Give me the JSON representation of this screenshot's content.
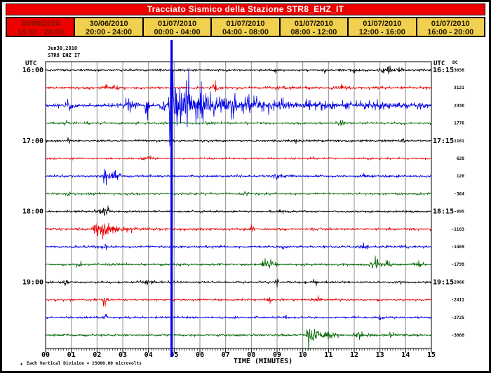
{
  "app": {
    "title": "Tracciato Sismico della Stazione STR8_EHZ_IT"
  },
  "tabs": [
    {
      "date": "30/06/2010",
      "range": "16:00 - 20:00",
      "active": true
    },
    {
      "date": "30/06/2010",
      "range": "20:00 - 24:00",
      "active": false
    },
    {
      "date": "01/07/2010",
      "range": "00:00 - 04:00",
      "active": false
    },
    {
      "date": "01/07/2010",
      "range": "04:00 - 08:00",
      "active": false
    },
    {
      "date": "01/07/2010",
      "range": "08:00 - 12:00",
      "active": false
    },
    {
      "date": "01/07/2010",
      "range": "12:00 - 16:00",
      "active": false
    },
    {
      "date": "01/07/2010",
      "range": "16:00 - 20:00",
      "active": false
    }
  ],
  "colors": {
    "header_bg": "#ee0000",
    "header_text": "#ffffff",
    "tab_bg": "#f0d04e",
    "tab_active_bg": "#ee0000",
    "grid": "#909090",
    "border": "#000000",
    "trace_cycle": [
      "#000000",
      "#e60000",
      "#0000e6",
      "#006600"
    ]
  },
  "chart_data": {
    "type": "line",
    "title_lines": [
      "Jun30,2010",
      "STR8 EHZ IT"
    ],
    "station": "STR8 EHZ IT",
    "left_axis_header": "UTC",
    "right_axis_header": "UTC",
    "dc_header": "DC",
    "x_axis": {
      "label": "TIME (MINUTES)",
      "min": 0,
      "max": 15,
      "minor_per_major": 10,
      "tick_labels": [
        "00",
        "01",
        "02",
        "03",
        "04",
        "05",
        "06",
        "07",
        "08",
        "09",
        "10",
        "11",
        "12",
        "13",
        "14",
        "15"
      ]
    },
    "hour_labels_left": [
      "16:00",
      "17:00",
      "18:00",
      "19:00"
    ],
    "hour_labels_right": [
      "16:15",
      "17:15",
      "18:15",
      "19:15"
    ],
    "trace_interval_minutes": 15,
    "footnote_marker": "▲",
    "footnote": "Each Vertical Division = 25000.00 microvolts",
    "big_event": {
      "minute": 4.9,
      "trace_start": "16:30",
      "color": "#0000e6",
      "description": "clipped seismic event spanning full plot height"
    },
    "traces": [
      {
        "start": "16:00",
        "color": "#000000",
        "dc": "3038",
        "noise": 1.2,
        "events": [
          [
            9.0,
            0.1,
            2
          ],
          [
            10.9,
            0.1,
            2.5
          ],
          [
            12.0,
            0.15,
            3
          ],
          [
            13.3,
            0.25,
            4.5
          ],
          [
            13.8,
            0.1,
            3
          ]
        ]
      },
      {
        "start": "16:15",
        "color": "#e60000",
        "dc": "3121",
        "noise": 1.6,
        "events": [
          [
            2.5,
            0.3,
            2
          ],
          [
            6.6,
            0.12,
            6
          ],
          [
            9.3,
            0.2,
            2
          ],
          [
            11.5,
            0.3,
            2
          ]
        ]
      },
      {
        "start": "16:30",
        "color": "#0000e6",
        "dc": "2436",
        "noise": 2.2,
        "events": [
          [
            0.9,
            0.15,
            6
          ],
          [
            3.25,
            0.12,
            14
          ],
          [
            3.55,
            0.06,
            10
          ],
          [
            3.95,
            0.05,
            28
          ],
          [
            4.55,
            0.1,
            10
          ],
          [
            4.88,
            0.07,
            150
          ],
          [
            5.1,
            0.15,
            40
          ],
          [
            5.45,
            0.2,
            25
          ],
          [
            5.9,
            0.5,
            16
          ],
          [
            6.8,
            0.8,
            10
          ],
          [
            8.0,
            1.0,
            6
          ],
          [
            10.0,
            1.5,
            3.5
          ],
          [
            13.0,
            1.5,
            3
          ],
          [
            14.6,
            0.2,
            5
          ]
        ]
      },
      {
        "start": "16:45",
        "color": "#006600",
        "dc": "1776",
        "noise": 1.3,
        "events": [
          [
            0.85,
            0.1,
            5
          ],
          [
            6.3,
            0.1,
            3
          ],
          [
            11.5,
            0.15,
            2.5
          ]
        ]
      },
      {
        "start": "17:00",
        "color": "#000000",
        "dc": "1161",
        "noise": 1.2,
        "events": [
          [
            0.9,
            0.06,
            6
          ],
          [
            9.6,
            0.15,
            2.5
          ],
          [
            13.9,
            0.1,
            3
          ]
        ]
      },
      {
        "start": "17:15",
        "color": "#e60000",
        "dc": "628",
        "noise": 1.2,
        "events": [
          [
            4.0,
            0.2,
            1.5
          ],
          [
            10.5,
            0.15,
            2
          ]
        ]
      },
      {
        "start": "17:30",
        "color": "#0000e6",
        "dc": "120",
        "noise": 1.4,
        "events": [
          [
            2.3,
            0.08,
            9
          ],
          [
            2.6,
            0.25,
            6
          ],
          [
            9.0,
            0.15,
            2.5
          ],
          [
            12.4,
            0.12,
            3
          ]
        ]
      },
      {
        "start": "17:45",
        "color": "#006600",
        "dc": "-364",
        "noise": 1.3,
        "events": [
          [
            0.9,
            0.08,
            5
          ],
          [
            7.8,
            0.12,
            2.5
          ]
        ]
      },
      {
        "start": "18:00",
        "color": "#000000",
        "dc": "-695",
        "noise": 1.2,
        "events": [
          [
            2.15,
            0.2,
            5
          ],
          [
            2.4,
            0.1,
            4
          ],
          [
            9.2,
            0.1,
            2
          ]
        ]
      },
      {
        "start": "18:15",
        "color": "#e60000",
        "dc": "-1163",
        "noise": 1.5,
        "events": [
          [
            2.0,
            0.15,
            6
          ],
          [
            2.35,
            0.35,
            9
          ],
          [
            3.3,
            0.3,
            3
          ],
          [
            8.0,
            0.1,
            2
          ]
        ]
      },
      {
        "start": "18:30",
        "color": "#0000e6",
        "dc": "-1469",
        "noise": 1.3,
        "events": [
          [
            2.3,
            0.1,
            4
          ],
          [
            9.3,
            0.1,
            2.5
          ],
          [
            12.4,
            0.15,
            3
          ],
          [
            13.9,
            0.1,
            2.5
          ]
        ]
      },
      {
        "start": "18:45",
        "color": "#006600",
        "dc": "-1799",
        "noise": 1.3,
        "events": [
          [
            1.3,
            0.08,
            4
          ],
          [
            8.5,
            0.12,
            7
          ],
          [
            8.8,
            0.2,
            4
          ],
          [
            12.8,
            0.15,
            8
          ],
          [
            13.2,
            0.2,
            4
          ],
          [
            14.5,
            0.15,
            3.5
          ]
        ]
      },
      {
        "start": "19:00",
        "color": "#000000",
        "dc": "-2066",
        "noise": 1.2,
        "events": [
          [
            0.8,
            0.1,
            3
          ],
          [
            3.9,
            0.2,
            2.5
          ],
          [
            9.0,
            0.06,
            5
          ],
          [
            10.5,
            0.1,
            2
          ],
          [
            13.8,
            0.08,
            3.5
          ]
        ]
      },
      {
        "start": "19:15",
        "color": "#e60000",
        "dc": "-2411",
        "noise": 1.3,
        "events": [
          [
            2.3,
            0.12,
            6
          ],
          [
            8.7,
            0.1,
            3
          ],
          [
            10.6,
            0.1,
            3
          ]
        ]
      },
      {
        "start": "19:30",
        "color": "#0000e6",
        "dc": "-2725",
        "noise": 1.2,
        "events": [
          [
            2.3,
            0.08,
            3
          ],
          [
            9.3,
            0.08,
            4
          ],
          [
            13.0,
            0.1,
            2.5
          ]
        ]
      },
      {
        "start": "19:45",
        "color": "#006600",
        "dc": "-3068",
        "noise": 1.3,
        "events": [
          [
            10.25,
            0.06,
            22
          ],
          [
            10.45,
            0.25,
            7
          ],
          [
            11.0,
            0.3,
            3.5
          ],
          [
            12.2,
            0.2,
            5
          ],
          [
            13.5,
            0.15,
            2.5
          ]
        ]
      }
    ]
  }
}
